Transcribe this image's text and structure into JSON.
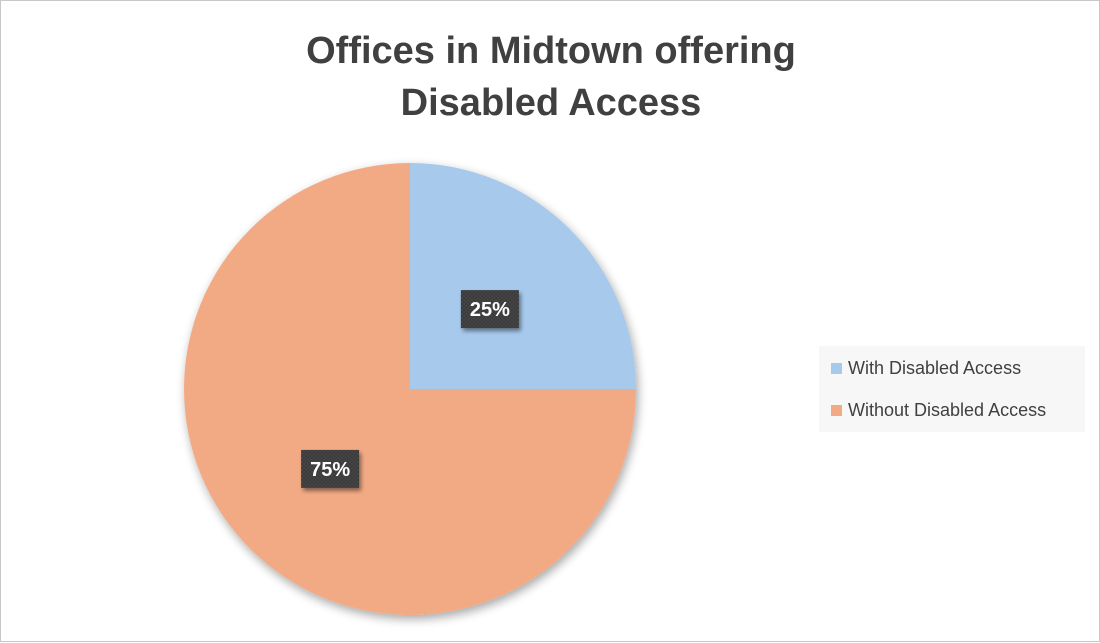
{
  "chart_data": {
    "type": "pie",
    "title_lines": [
      "Offices in Midtown offering",
      "Disabled Access"
    ],
    "slices": [
      {
        "label": "With Disabled Access",
        "value": 25,
        "display": "25%",
        "color": "#a7c9ec"
      },
      {
        "label": "Without Disabled Access",
        "value": 75,
        "display": "75%",
        "color": "#f2aa84"
      }
    ],
    "legend_position": "right"
  }
}
